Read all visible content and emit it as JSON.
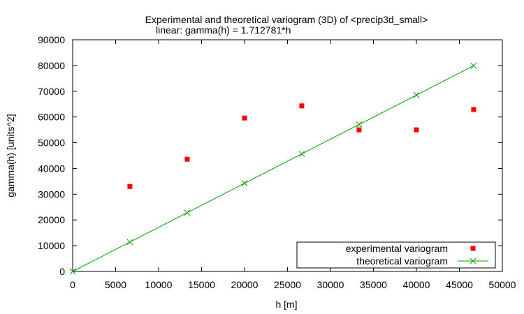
{
  "chart_data": {
    "type": "scatter",
    "title": "Experimental and theoretical variogram (3D) of <precip3d_small>",
    "subtitle": "linear: gamma(h) = 1.712781*h",
    "xlabel": "h [m]",
    "ylabel": "gamma(h) [units^2]",
    "xlim": [
      0,
      50000
    ],
    "ylim": [
      0,
      90000
    ],
    "xticks": [
      0,
      5000,
      10000,
      15000,
      20000,
      25000,
      30000,
      35000,
      40000,
      45000,
      50000
    ],
    "yticks": [
      0,
      10000,
      20000,
      30000,
      40000,
      50000,
      60000,
      70000,
      80000,
      90000
    ],
    "grid": false,
    "legend_position": "bottom-right",
    "series": [
      {
        "name": "experimental variogram",
        "style": "points",
        "marker": "filled-square",
        "color": "#ff0000",
        "x": [
          6660,
          13330,
          20000,
          26660,
          33330,
          40000,
          46660
        ],
        "y": [
          33000,
          43600,
          59600,
          64300,
          55000,
          55000,
          62900
        ]
      },
      {
        "name": "theoretical variogram",
        "style": "linespoints",
        "marker": "cross",
        "color": "#00a000",
        "x": [
          0,
          6660,
          13330,
          20000,
          26660,
          33330,
          40000,
          46660
        ],
        "y": [
          0,
          11407,
          22831,
          34256,
          45663,
          57087,
          68511,
          79918
        ]
      }
    ]
  }
}
